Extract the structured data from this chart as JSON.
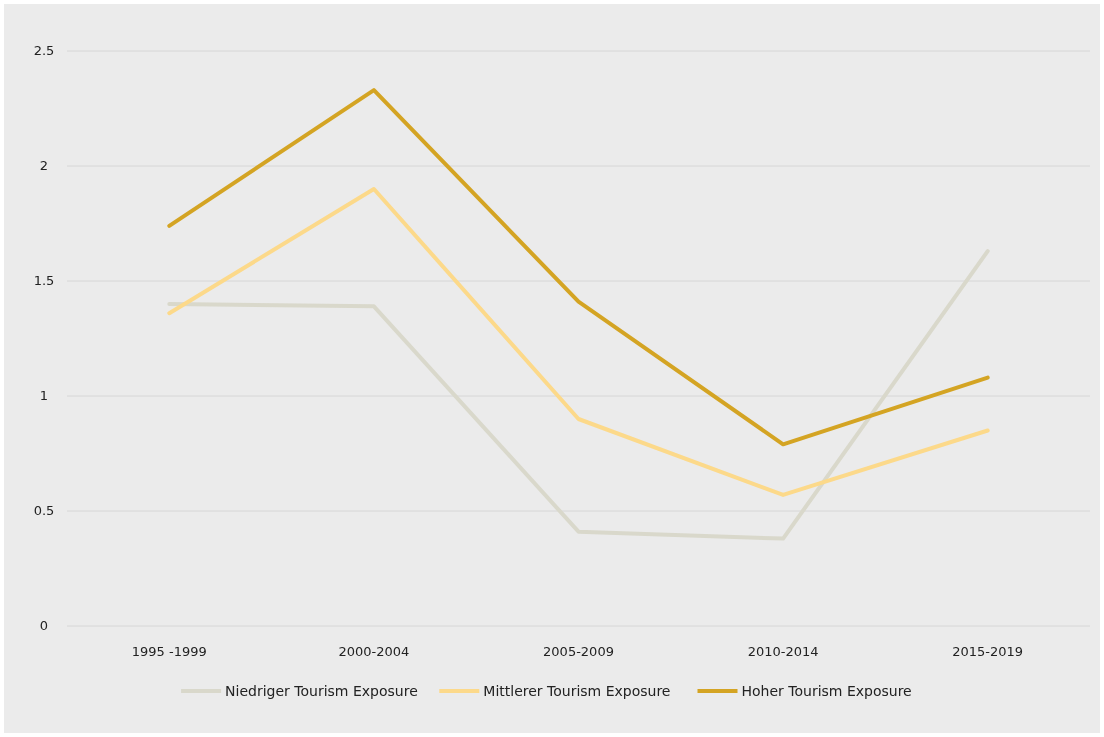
{
  "chart_data": {
    "type": "line",
    "categories": [
      "1995 -1999",
      "2000-2004",
      "2005-2009",
      "2010-2014",
      "2015-2019"
    ],
    "series": [
      {
        "name": "Niedriger Tourism Exposure",
        "color": "#d9d8cb",
        "values": [
          1.4,
          1.39,
          0.41,
          0.38,
          1.63
        ]
      },
      {
        "name": "Mittlerer Tourism Exposure",
        "color": "#fcd98a",
        "values": [
          1.36,
          1.9,
          0.9,
          0.57,
          0.85
        ]
      },
      {
        "name": "Hoher Tourism Exposure",
        "color": "#d4a423",
        "values": [
          1.74,
          2.33,
          1.41,
          0.79,
          1.08
        ]
      }
    ],
    "ylim": [
      0,
      2.5
    ],
    "yticks": [
      0,
      0.5,
      1,
      1.5,
      2,
      2.5
    ],
    "grid": "y",
    "legend": "bottom",
    "marker": "none",
    "line_style": "solid"
  }
}
